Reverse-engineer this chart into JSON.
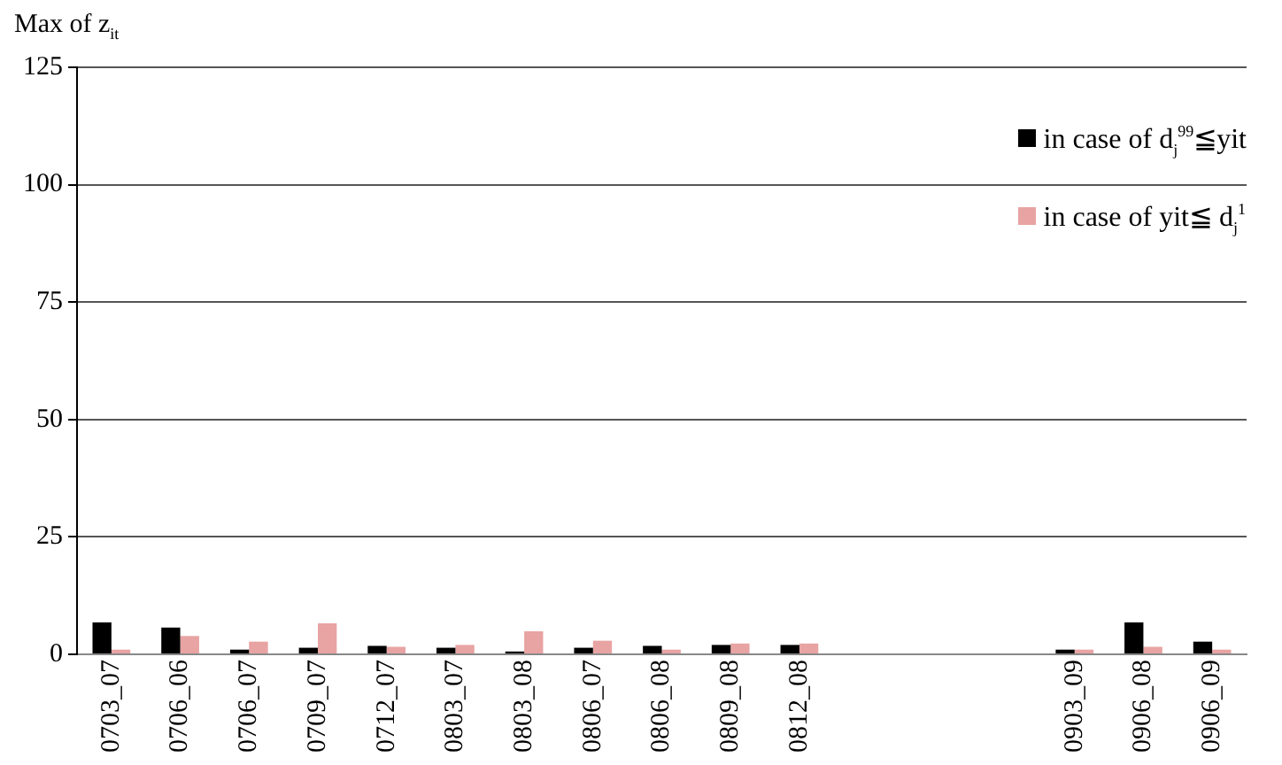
{
  "chart_data": {
    "type": "bar",
    "ylabel": "Max of z$_{it}$",
    "categories": [
      "0703_07",
      "0706_06",
      "0706_07",
      "0709_07",
      "0712_07",
      "0803_07",
      "0803_08",
      "0806_07",
      "0806_08",
      "0809_08",
      "0812_08",
      null,
      null,
      null,
      "0903_09",
      "0906_08",
      "0906_09"
    ],
    "series": [
      {
        "name": "in case of  d$_{j}$$^{99}$≦yit",
        "color": "#000000",
        "values": [
          6.8,
          5.7,
          1,
          1.4,
          1.8,
          1.4,
          0.6,
          1.4,
          1.8,
          2,
          2,
          null,
          null,
          null,
          1,
          6.8,
          2.7
        ]
      },
      {
        "name": "in case of yit≦ d$_{j}$$^{1}$",
        "color": "#e8a3a3",
        "values": [
          1,
          3.9,
          2.7,
          6.6,
          1.6,
          2,
          4.9,
          2.9,
          1,
          2.3,
          2.3,
          null,
          null,
          null,
          1,
          1.6,
          1
        ]
      }
    ],
    "ylim": [
      0,
      125
    ],
    "yticks": [
      0,
      25,
      50,
      75,
      100,
      125
    ],
    "grid": "y",
    "legend": "top right"
  }
}
